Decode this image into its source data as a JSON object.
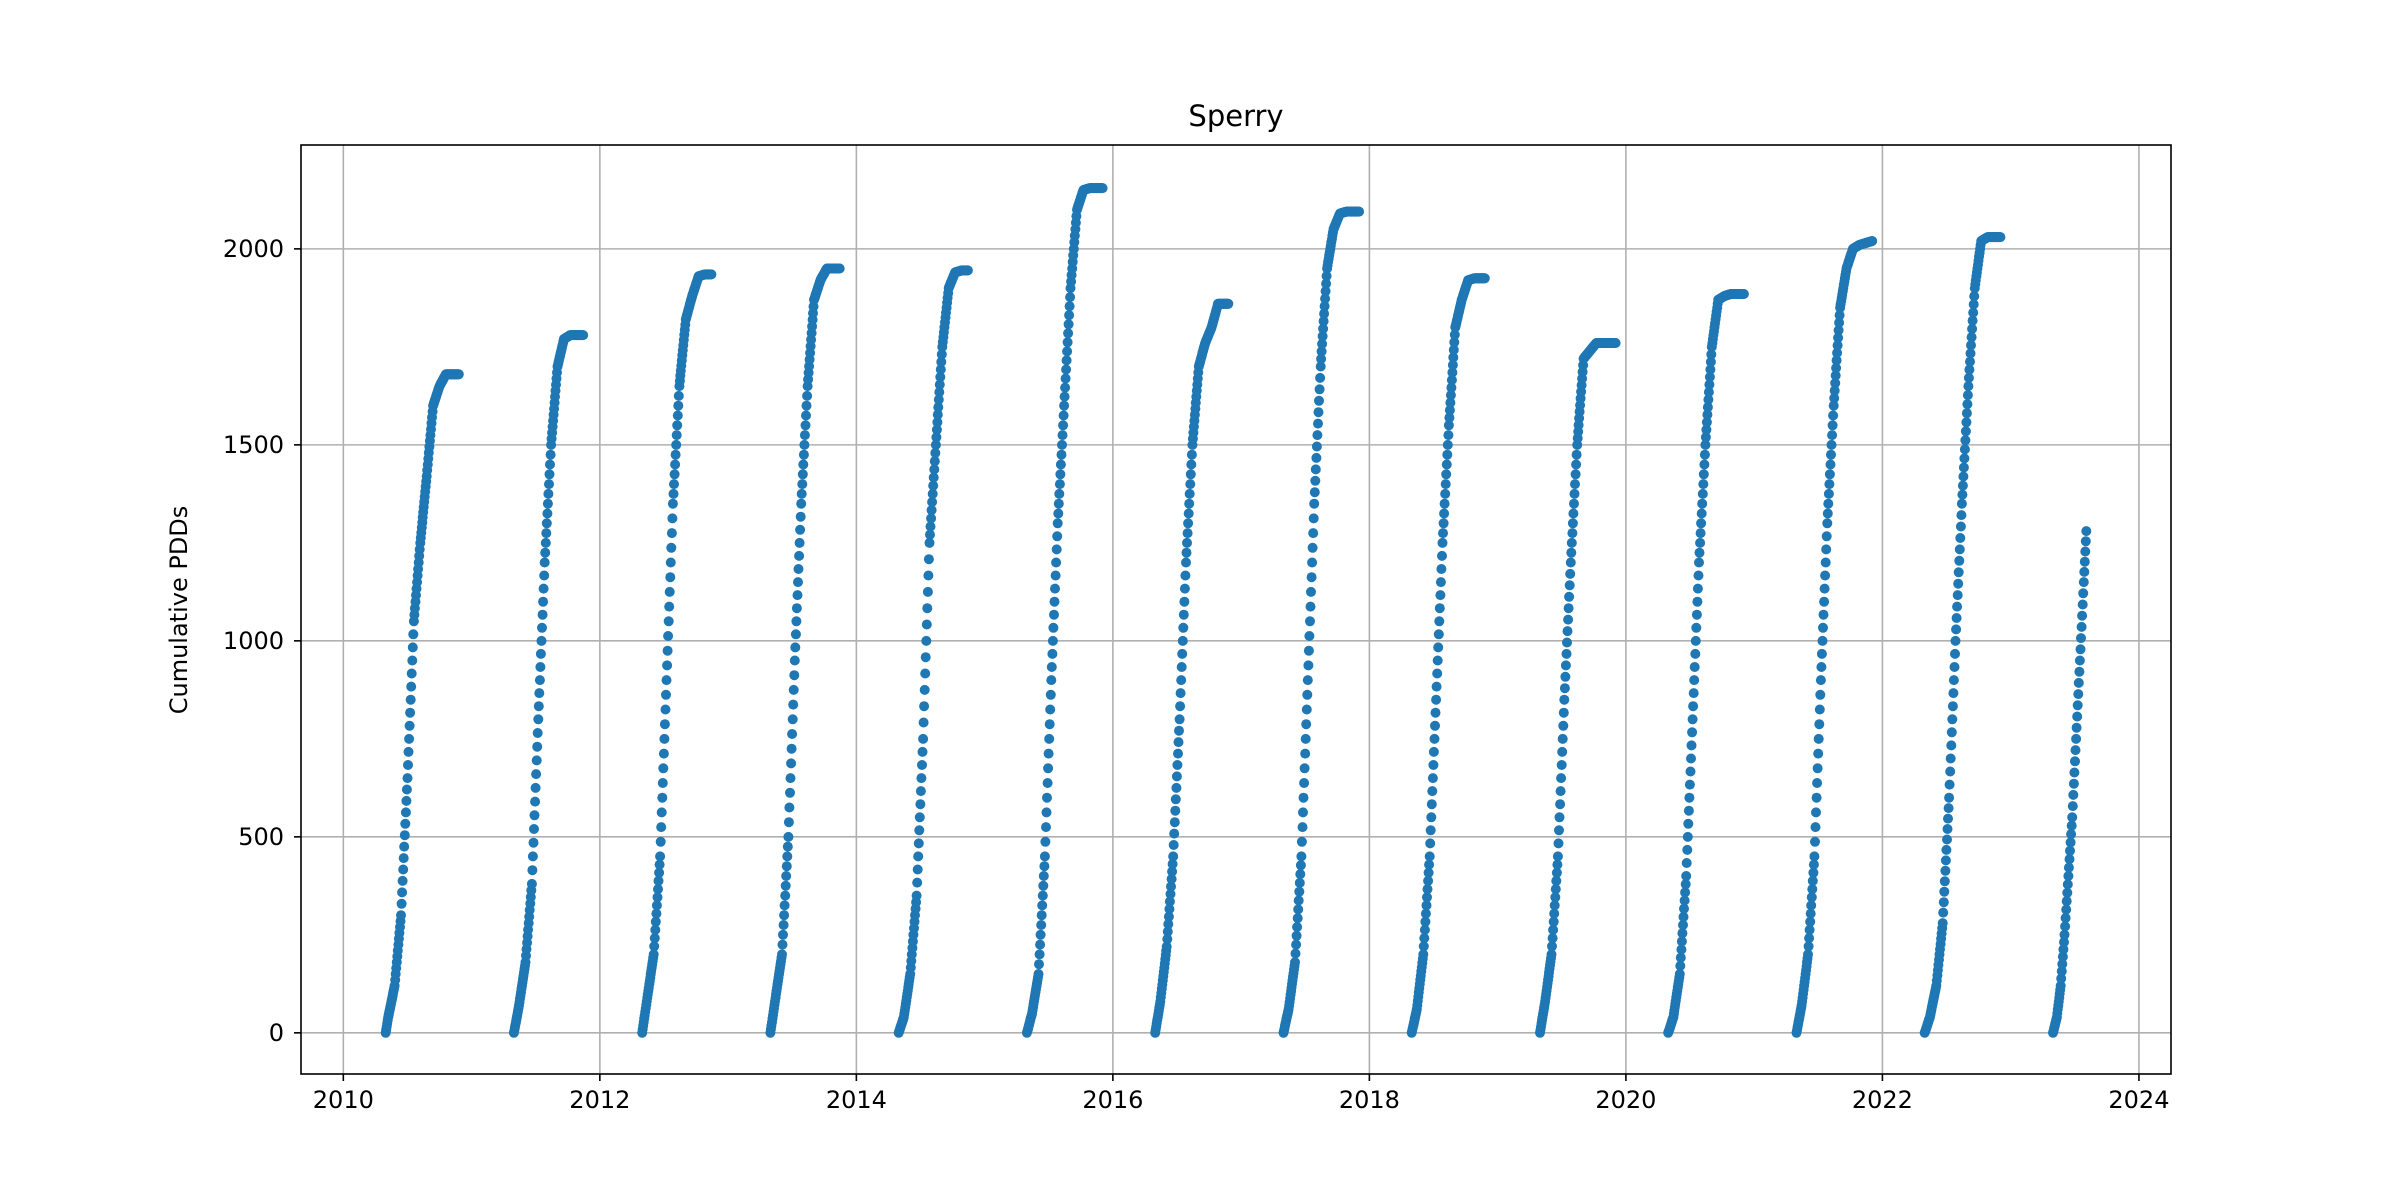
{
  "chart_data": {
    "type": "scatter",
    "title": "Sperry",
    "xlabel": "",
    "ylabel": "Cumulative PDDs",
    "xlim": [
      2009.67,
      2024.25
    ],
    "ylim": [
      -105,
      2265
    ],
    "x_ticks": [
      "2010",
      "2012",
      "2014",
      "2016",
      "2018",
      "2020",
      "2022",
      "2024"
    ],
    "y_ticks": [
      "0",
      "500",
      "1000",
      "1500",
      "2000"
    ],
    "grid": true,
    "marker_color": "#1f77b4",
    "series": [
      {
        "values": [
          {
            "season": 2010,
            "x": [
              2010.33,
              2010.35,
              2010.4,
              2010.45,
              2010.5,
              2010.55,
              2010.6,
              2010.65,
              2010.7,
              2010.75,
              2010.8,
              2010.85,
              2010.9
            ],
            "y": [
              0,
              40,
              120,
              300,
              650,
              1050,
              1250,
              1420,
              1600,
              1650,
              1680,
              1680,
              1680
            ]
          },
          {
            "season": 2011,
            "x": [
              2011.33,
              2011.37,
              2011.42,
              2011.47,
              2011.52,
              2011.57,
              2011.62,
              2011.67,
              2011.72,
              2011.77,
              2011.82,
              2011.87
            ],
            "y": [
              0,
              70,
              180,
              380,
              800,
              1200,
              1500,
              1700,
              1770,
              1780,
              1780,
              1780
            ]
          },
          {
            "season": 2012,
            "x": [
              2012.33,
              2012.37,
              2012.42,
              2012.47,
              2012.52,
              2012.57,
              2012.62,
              2012.67,
              2012.72,
              2012.77,
              2012.82,
              2012.87
            ],
            "y": [
              0,
              90,
              200,
              450,
              900,
              1350,
              1650,
              1820,
              1880,
              1930,
              1935,
              1935
            ]
          },
          {
            "season": 2013,
            "x": [
              2013.33,
              2013.37,
              2013.42,
              2013.47,
              2013.52,
              2013.57,
              2013.62,
              2013.67,
              2013.72,
              2013.77,
              2013.82,
              2013.87
            ],
            "y": [
              0,
              90,
              200,
              500,
              950,
              1350,
              1650,
              1870,
              1920,
              1950,
              1950,
              1950
            ]
          },
          {
            "season": 2014,
            "x": [
              2014.33,
              2014.37,
              2014.42,
              2014.47,
              2014.52,
              2014.57,
              2014.62,
              2014.67,
              2014.72,
              2014.77,
              2014.82,
              2014.87
            ],
            "y": [
              0,
              40,
              150,
              350,
              750,
              1250,
              1500,
              1750,
              1900,
              1940,
              1945,
              1945
            ]
          },
          {
            "season": 2015,
            "x": [
              2015.33,
              2015.37,
              2015.42,
              2015.47,
              2015.52,
              2015.57,
              2015.62,
              2015.67,
              2015.72,
              2015.77,
              2015.82,
              2015.87,
              2015.92
            ],
            "y": [
              0,
              50,
              150,
              450,
              900,
              1300,
              1600,
              1900,
              2100,
              2150,
              2155,
              2155,
              2155
            ]
          },
          {
            "season": 2016,
            "x": [
              2016.33,
              2016.37,
              2016.42,
              2016.47,
              2016.52,
              2016.57,
              2016.62,
              2016.67,
              2016.72,
              2016.77,
              2016.82,
              2016.87,
              2016.9
            ],
            "y": [
              0,
              80,
              220,
              450,
              800,
              1200,
              1500,
              1700,
              1760,
              1800,
              1860,
              1860,
              1860
            ]
          },
          {
            "season": 2017,
            "x": [
              2017.33,
              2017.37,
              2017.42,
              2017.47,
              2017.52,
              2017.57,
              2017.62,
              2017.67,
              2017.72,
              2017.77,
              2017.82,
              2017.87,
              2017.92
            ],
            "y": [
              0,
              60,
              180,
              450,
              900,
              1350,
              1700,
              1950,
              2050,
              2090,
              2095,
              2095,
              2095
            ]
          },
          {
            "season": 2018,
            "x": [
              2018.33,
              2018.37,
              2018.42,
              2018.47,
              2018.52,
              2018.57,
              2018.62,
              2018.67,
              2018.72,
              2018.77,
              2018.82,
              2018.87,
              2018.9
            ],
            "y": [
              0,
              60,
              200,
              450,
              850,
              1250,
              1550,
              1800,
              1870,
              1920,
              1925,
              1925,
              1925
            ]
          },
          {
            "season": 2019,
            "x": [
              2019.33,
              2019.37,
              2019.42,
              2019.47,
              2019.52,
              2019.57,
              2019.62,
              2019.67,
              2019.72,
              2019.77,
              2019.82,
              2019.87,
              2019.92
            ],
            "y": [
              0,
              80,
              200,
              450,
              850,
              1200,
              1500,
              1720,
              1740,
              1760,
              1760,
              1760,
              1760
            ]
          },
          {
            "season": 2020,
            "x": [
              2020.33,
              2020.37,
              2020.42,
              2020.47,
              2020.52,
              2020.57,
              2020.62,
              2020.67,
              2020.72,
              2020.77,
              2020.82,
              2020.87,
              2020.92
            ],
            "y": [
              0,
              40,
              150,
              400,
              800,
              1200,
              1500,
              1750,
              1870,
              1880,
              1885,
              1885,
              1885
            ]
          },
          {
            "season": 2021,
            "x": [
              2021.33,
              2021.37,
              2021.42,
              2021.47,
              2021.52,
              2021.57,
              2021.62,
              2021.67,
              2021.72,
              2021.77,
              2021.82,
              2021.87,
              2021.92
            ],
            "y": [
              0,
              70,
              200,
              450,
              900,
              1300,
              1600,
              1850,
              1950,
              2000,
              2010,
              2015,
              2020
            ]
          },
          {
            "season": 2022,
            "x": [
              2022.33,
              2022.37,
              2022.42,
              2022.47,
              2022.52,
              2022.57,
              2022.62,
              2022.67,
              2022.72,
              2022.77,
              2022.82,
              2022.87,
              2022.92
            ],
            "y": [
              0,
              40,
              120,
              280,
              600,
              1000,
              1350,
              1650,
              1900,
              2020,
              2030,
              2030,
              2030
            ]
          },
          {
            "season": 2023,
            "x": [
              2023.33,
              2023.36,
              2023.39,
              2023.42,
              2023.45,
              2023.48,
              2023.51,
              2023.54,
              2023.57,
              2023.59
            ],
            "y": [
              0,
              40,
              120,
              250,
              400,
              550,
              750,
              950,
              1150,
              1280
            ]
          }
        ]
      }
    ]
  }
}
